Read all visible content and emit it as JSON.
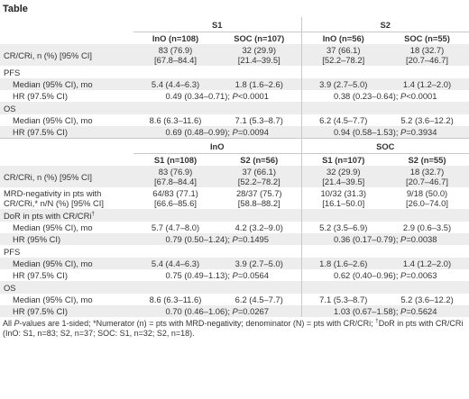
{
  "caption": "Table",
  "part1": {
    "groups": [
      "S1",
      "S2"
    ],
    "subheaders": [
      "InO (n=108)",
      "SOC (n=107)",
      "InO (n=56)",
      "SOC (n=55)"
    ],
    "cr_label": "CR/CRi, n (%) [95% CI]",
    "cr_values": [
      {
        "n": "83 (76.9)",
        "ci": "[67.8–84.4]"
      },
      {
        "n": "32 (29.9)",
        "ci": "[21.4–39.5]"
      },
      {
        "n": "37 (66.1)",
        "ci": "[52.2–78.2]"
      },
      {
        "n": "18 (32.7)",
        "ci": "[20.7–46.7]"
      }
    ],
    "pfs_label": "PFS",
    "pfs_median_label": "Median (95% CI), mo",
    "pfs_median": [
      "5.4 (4.4–6.3)",
      "1.8 (1.6–2.6)",
      "3.9 (2.7–5.0)",
      "1.4 (1.2–2.0)"
    ],
    "pfs_hr_label": "HR (97.5% CI)",
    "pfs_hr_s1": "0.49 (0.34–0.71);",
    "pfs_hr_s1_p": "<0.0001",
    "pfs_hr_s2": "0.38 (0.23–0.64);",
    "pfs_hr_s2_p": "<0.0001",
    "os_label": "OS",
    "os_median_label": "Median (95% CI), mo",
    "os_median": [
      "8.6 (6.3–11.6)",
      "7.1 (5.3–8.7)",
      "6.2 (4.5–7.7)",
      "5.2 (3.6–12.2)"
    ],
    "os_hr_label": "HR (97.5% CI)",
    "os_hr_s1": "0.69 (0.48–0.99);",
    "os_hr_s1_p": "=0.0094",
    "os_hr_s2": "0.94 (0.58–1.53);",
    "os_hr_s2_p": "=0.3934"
  },
  "part2": {
    "groups": [
      "InO",
      "SOC"
    ],
    "subheaders": [
      "S1 (n=108)",
      "S2 (n=56)",
      "S1 (n=107)",
      "S2 (n=55)"
    ],
    "cr_label": "CR/CRi, n (%) [95% CI]",
    "cr_values": [
      {
        "n": "83 (76.9)",
        "ci": "[67.8–84.4]"
      },
      {
        "n": "37 (66.1)",
        "ci": "[52.2–78.2]"
      },
      {
        "n": "32 (29.9)",
        "ci": "[21.4–39.5]"
      },
      {
        "n": "18 (32.7)",
        "ci": "[20.7–46.7]"
      }
    ],
    "mrd_label_1": "MRD-negativity in pts with",
    "mrd_label_2": "CR/CRi,* n/N (%) [95% CI]",
    "mrd_values": [
      {
        "n": "64/83 (77.1)",
        "ci": "[66.6–85.6]"
      },
      {
        "n": "28/37 (75.7)",
        "ci": "[58.8–88.2]"
      },
      {
        "n": "10/32 (31.3)",
        "ci": "[16.1–50.0]"
      },
      {
        "n": "9/18 (50.0)",
        "ci": "[26.0–74.0]"
      }
    ],
    "dor_label": "DoR in pts with CR/CRi",
    "dor_sup": "†",
    "dor_median_label": "Median (95% CI), mo",
    "dor_median": [
      "5.7 (4.7–8.0)",
      "4.2 (3.2–9.0)",
      "5.2 (3.5–6.9)",
      "2.9 (0.6–3.5)"
    ],
    "dor_hr_label": "HR (95% CI)",
    "dor_hr_ino": "0.79 (0.50–1.24);",
    "dor_hr_ino_p": "=0.1495",
    "dor_hr_soc": "0.36 (0.17–0.79);",
    "dor_hr_soc_p": "=0.0038",
    "pfs_label": "PFS",
    "pfs_median_label": "Median (95% CI), mo",
    "pfs_median": [
      "5.4 (4.4–6.3)",
      "3.9 (2.7–5.0)",
      "1.8 (1.6–2.6)",
      "1.4 (1.2–2.0)"
    ],
    "pfs_hr_label": "HR (97.5% CI)",
    "pfs_hr_ino": "0.75 (0.49–1.13);",
    "pfs_hr_ino_p": "=0.0564",
    "pfs_hr_soc": "0.62 (0.40–0.96);",
    "pfs_hr_soc_p": "=0.0063",
    "os_label": "OS",
    "os_median_label": "Median (95% CI), mo",
    "os_median": [
      "8.6 (6.3–11.6)",
      "6.2 (4.5–7.7)",
      "7.1 (5.3–8.7)",
      "5.2 (3.6–12.2)"
    ],
    "os_hr_label": "HR (97.5% CI)",
    "os_hr_ino": "0.70 (0.46–1.06);",
    "os_hr_ino_p": "=0.0267",
    "os_hr_soc": "1.03 (0.67–1.58);",
    "os_hr_soc_p": "=0.5624"
  },
  "p_letter": "P",
  "footnote": {
    "part_a_1": "All ",
    "part_a_p": "P",
    "part_a_2": "-values are 1-sided; *Numerator (n) = pts with MRD-negativity; denominator (N) = pts with CR/CRi; ",
    "dagger": "†",
    "part_b": "DoR in pts with CR/CRi (InO: S1, n=83; S2, n=37; SOC: S1, n=32; S2, n=18)."
  },
  "colors": {
    "shaded_row": "#ededed",
    "rule": "#c9c9c9",
    "text": "#333333"
  }
}
